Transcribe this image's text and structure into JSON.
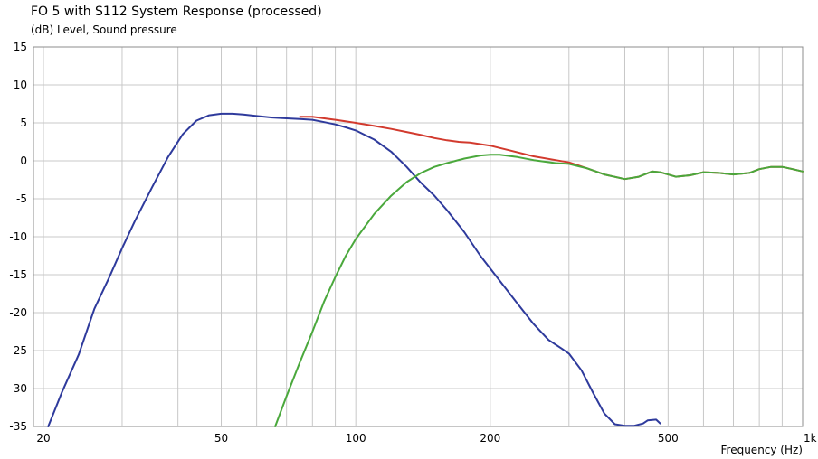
{
  "chart_data": {
    "type": "line",
    "title": "FO 5 with S112 System Response (processed)",
    "ylabel": "(dB)  Level, Sound pressure",
    "xlabel": "Frequency  (Hz)",
    "xscale": "log",
    "xlim": [
      19,
      1000
    ],
    "ylim": [
      -35,
      15
    ],
    "grid": true,
    "x_ticks": [
      {
        "value": 20,
        "label": "20"
      },
      {
        "value": 50,
        "label": "50"
      },
      {
        "value": 100,
        "label": "100"
      },
      {
        "value": 200,
        "label": "200"
      },
      {
        "value": 500,
        "label": "500"
      },
      {
        "value": 1000,
        "label": "1k"
      }
    ],
    "y_ticks": [
      15,
      10,
      5,
      0,
      -5,
      -10,
      -15,
      -20,
      -25,
      -30,
      -35
    ],
    "series": [
      {
        "color": "#d23a2e",
        "x": [
          75,
          80,
          90,
          100,
          110,
          120,
          130,
          140,
          150,
          160,
          170,
          180,
          200,
          220,
          250,
          280,
          300,
          330,
          360,
          400,
          430,
          460,
          480,
          520,
          560,
          600,
          650,
          700,
          760,
          800,
          850,
          900,
          950,
          1000
        ],
        "y": [
          5.8,
          5.8,
          5.4,
          5.0,
          4.6,
          4.2,
          3.8,
          3.4,
          3.0,
          2.7,
          2.5,
          2.4,
          2.0,
          1.4,
          0.6,
          0.1,
          -0.2,
          -1.0,
          -1.8,
          -2.4,
          -2.1,
          -1.4,
          -1.5,
          -2.1,
          -1.9,
          -1.5,
          -1.6,
          -1.8,
          -1.6,
          -1.1,
          -0.8,
          -0.8,
          -1.1,
          -1.4
        ]
      },
      {
        "color": "#2e3a9c",
        "x": [
          20.5,
          22,
          24,
          26,
          28,
          30,
          32,
          35,
          38,
          41,
          44,
          47,
          50,
          53,
          56,
          60,
          65,
          70,
          75,
          80,
          85,
          90,
          95,
          100,
          110,
          120,
          130,
          140,
          150,
          160,
          175,
          190,
          210,
          230,
          250,
          270,
          290,
          300,
          320,
          340,
          360,
          380,
          400,
          420,
          440,
          450,
          470,
          480
        ],
        "y": [
          -35,
          -30.5,
          -25.5,
          -19.5,
          -15.5,
          -11.5,
          -8,
          -3.5,
          0.5,
          3.5,
          5.3,
          6.0,
          6.2,
          6.2,
          6.1,
          5.9,
          5.7,
          5.6,
          5.5,
          5.4,
          5.1,
          4.8,
          4.4,
          4.0,
          2.8,
          1.2,
          -0.8,
          -2.9,
          -4.6,
          -6.5,
          -9.4,
          -12.5,
          -15.8,
          -18.8,
          -21.5,
          -23.6,
          -24.8,
          -25.4,
          -27.6,
          -30.6,
          -33.3,
          -34.7,
          -34.9,
          -34.9,
          -34.6,
          -34.2,
          -34.1,
          -34.6
        ]
      },
      {
        "color": "#4aa83c",
        "x": [
          66,
          70,
          75,
          80,
          85,
          90,
          95,
          100,
          110,
          120,
          130,
          140,
          150,
          160,
          175,
          190,
          200,
          210,
          230,
          250,
          280,
          300,
          330,
          360,
          400,
          430,
          460,
          480,
          520,
          560,
          600,
          650,
          700,
          760,
          800,
          850,
          900,
          950,
          1000
        ],
        "y": [
          -35,
          -31,
          -26.5,
          -22.5,
          -18.5,
          -15.3,
          -12.5,
          -10.3,
          -7,
          -4.6,
          -2.8,
          -1.6,
          -0.8,
          -0.3,
          0.3,
          0.7,
          0.8,
          0.8,
          0.5,
          0.1,
          -0.3,
          -0.4,
          -1.0,
          -1.8,
          -2.4,
          -2.1,
          -1.4,
          -1.5,
          -2.1,
          -1.9,
          -1.5,
          -1.6,
          -1.8,
          -1.6,
          -1.1,
          -0.8,
          -0.8,
          -1.1,
          -1.4
        ]
      }
    ]
  }
}
